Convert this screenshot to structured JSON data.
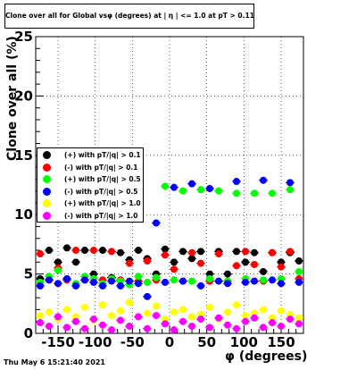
{
  "title": "Clone  over all for Global vsφ (degrees) at | η | <= 1.0 at pT > 0.11",
  "footer": "Thu May  6 15:21:40 2021",
  "chart_data": {
    "type": "scatter",
    "title": "Clone  over all for Global vsφ (degrees) at | η | <= 1.0 at pT > 0.11",
    "xlabel": "φ (degrees)",
    "ylabel": "Clone  over all (%)",
    "xlim": [
      -180,
      180
    ],
    "ylim": [
      0,
      25
    ],
    "xticks": [
      -150,
      -100,
      -50,
      0,
      50,
      100,
      150
    ],
    "yticks": [
      0,
      5,
      10,
      15,
      20,
      25
    ],
    "grid": true,
    "legend_position": "middle-left",
    "series": [
      {
        "name": "(+) with pT/|q| > 0.1",
        "color": "#000000",
        "x": [
          -174,
          -162,
          -150,
          -138,
          -126,
          -114,
          -102,
          -90,
          -78,
          -66,
          -54,
          -42,
          -30,
          -18,
          -6,
          6,
          18,
          30,
          42,
          54,
          66,
          78,
          90,
          102,
          114,
          126,
          138,
          150,
          162,
          174
        ],
        "y": [
          4.6,
          7.0,
          6.0,
          7.2,
          6.0,
          7.0,
          5.0,
          7.0,
          4.7,
          6.8,
          6.2,
          7.0,
          6.3,
          5.0,
          7.1,
          6.0,
          6.9,
          6.3,
          6.9,
          5.0,
          6.9,
          5.0,
          6.9,
          6.0,
          6.8,
          5.2,
          6.8,
          6.0,
          6.8,
          6.1
        ]
      },
      {
        "name": "(-) with pT/|q| > 0.1",
        "color": "#ff0000",
        "x": [
          -174,
          -162,
          -150,
          -138,
          -126,
          -114,
          -102,
          -90,
          -78,
          -66,
          -54,
          -42,
          -30,
          -18,
          -6,
          6,
          18,
          30,
          42,
          54,
          66,
          78,
          90,
          102,
          114,
          126,
          138,
          150,
          162,
          174
        ],
        "y": [
          6.7,
          4.5,
          5.5,
          4.5,
          7.0,
          4.5,
          7.0,
          4.5,
          6.9,
          4.5,
          5.9,
          4.4,
          6.1,
          4.5,
          6.6,
          5.4,
          4.4,
          6.8,
          5.9,
          4.4,
          6.7,
          4.4,
          5.7,
          6.9,
          5.8,
          4.4,
          6.8,
          5.6,
          6.9,
          4.6
        ]
      },
      {
        "name": "(+) with pT/|q| > 0.5",
        "color": "#00ff00",
        "x": [
          -174,
          -162,
          -150,
          -138,
          -126,
          -114,
          -102,
          -90,
          -78,
          -66,
          -54,
          -42,
          -30,
          -18,
          -6,
          6,
          18,
          30,
          42,
          54,
          66,
          78,
          90,
          102,
          114,
          126,
          138,
          150,
          162,
          174
        ],
        "y": [
          4.3,
          4.8,
          5.3,
          4.6,
          4.2,
          4.8,
          4.6,
          4.2,
          4.6,
          4.4,
          4.1,
          4.8,
          4.3,
          4.7,
          12.4,
          4.5,
          12.0,
          4.4,
          12.1,
          4.6,
          12.0,
          4.4,
          11.8,
          4.6,
          11.8,
          4.5,
          11.8,
          4.6,
          12.1,
          5.2
        ]
      },
      {
        "name": "(-) with pT/|q| > 0.5",
        "color": "#0000ff",
        "x": [
          -174,
          -162,
          -150,
          -138,
          -126,
          -114,
          -102,
          -90,
          -78,
          -66,
          -54,
          -42,
          -30,
          -18,
          -6,
          6,
          18,
          30,
          42,
          54,
          66,
          78,
          90,
          102,
          114,
          126,
          138,
          150,
          162,
          174
        ],
        "y": [
          4.0,
          4.5,
          4.2,
          4.6,
          4.0,
          4.5,
          4.3,
          4.0,
          4.4,
          4.0,
          4.4,
          4.2,
          3.1,
          9.3,
          4.3,
          12.3,
          4.4,
          12.6,
          4.0,
          12.2,
          4.4,
          4.2,
          12.8,
          4.3,
          4.4,
          12.9,
          4.5,
          4.2,
          12.7,
          4.3
        ]
      },
      {
        "name": "(+) with pT/|q| > 1.0",
        "color": "#ffff00",
        "x": [
          -174,
          -162,
          -150,
          -138,
          -126,
          -114,
          -102,
          -90,
          -78,
          -66,
          -54,
          -42,
          -30,
          -18,
          -6,
          6,
          18,
          30,
          42,
          54,
          66,
          78,
          90,
          102,
          114,
          126,
          138,
          150,
          162,
          174
        ],
        "y": [
          1.5,
          1.8,
          1.2,
          2.0,
          1.4,
          2.2,
          1.1,
          2.4,
          1.5,
          1.9,
          2.6,
          1.4,
          1.7,
          2.3,
          1.2,
          1.8,
          2.0,
          1.4,
          1.6,
          2.2,
          1.2,
          1.8,
          2.4,
          1.5,
          1.7,
          2.0,
          1.3,
          1.9,
          1.6,
          1.3
        ]
      },
      {
        "name": "(-) with pT/|q| > 1.0",
        "color": "#ff00ff",
        "x": [
          -174,
          -162,
          -150,
          -138,
          -126,
          -114,
          -102,
          -90,
          -78,
          -66,
          -54,
          -42,
          -30,
          -18,
          -6,
          6,
          18,
          30,
          42,
          54,
          66,
          78,
          90,
          102,
          114,
          126,
          138,
          150,
          162,
          174
        ],
        "y": [
          0.9,
          0.6,
          1.4,
          0.5,
          1.0,
          0.4,
          1.2,
          0.7,
          0.3,
          1.1,
          0.6,
          1.4,
          0.4,
          1.5,
          0.8,
          0.3,
          1.0,
          0.6,
          1.2,
          0.5,
          1.3,
          0.7,
          0.4,
          1.0,
          1.3,
          0.5,
          0.9,
          0.6,
          1.2,
          0.8
        ]
      }
    ]
  }
}
